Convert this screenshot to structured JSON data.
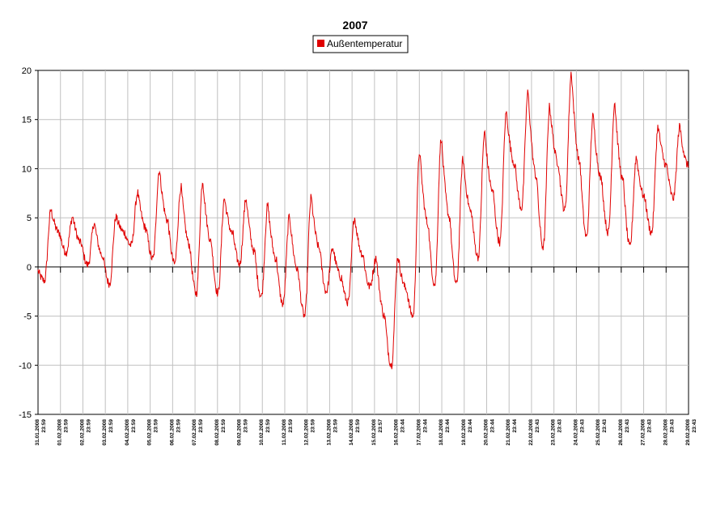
{
  "chart_data": {
    "type": "line",
    "title": "2007",
    "xlabel": "",
    "ylabel": "",
    "ylim": [
      -15,
      20
    ],
    "yticks": [
      -15,
      -10,
      -5,
      0,
      5,
      10,
      15,
      20
    ],
    "grid": true,
    "legend_position": "top-center",
    "x_tick_labels": [
      [
        "31.01.2008",
        "23:59"
      ],
      [
        "01.02.2008",
        "23:59"
      ],
      [
        "02.02.2008",
        "23:59"
      ],
      [
        "03.02.2008",
        "23:59"
      ],
      [
        "04.02.2008",
        "23:59"
      ],
      [
        "05.02.2008",
        "23:59"
      ],
      [
        "06.02.2008",
        "23:59"
      ],
      [
        "07.02.2008",
        "23:59"
      ],
      [
        "08.02.2008",
        "23:59"
      ],
      [
        "09.02.2008",
        "23:59"
      ],
      [
        "10.02.2008",
        "23:59"
      ],
      [
        "11.02.2008",
        "23:59"
      ],
      [
        "12.02.2008",
        "23:59"
      ],
      [
        "13.02.2008",
        "23:59"
      ],
      [
        "14.02.2008",
        "23:59"
      ],
      [
        "15.02.2008",
        "23:57"
      ],
      [
        "16.02.2008",
        "23:44"
      ],
      [
        "17.02.2008",
        "23:44"
      ],
      [
        "18.02.2008",
        "23:44"
      ],
      [
        "19.02.2008",
        "23:44"
      ],
      [
        "20.02.2008",
        "23:44"
      ],
      [
        "21.02.2008",
        "23:44"
      ],
      [
        "22.02.2008",
        "23:43"
      ],
      [
        "23.02.2008",
        "23:43"
      ],
      [
        "24.02.2008",
        "23:43"
      ],
      [
        "25.02.2008",
        "23:43"
      ],
      [
        "26.02.2008",
        "23:43"
      ],
      [
        "27.02.2008",
        "23:43"
      ],
      [
        "28.02.2008",
        "23:43"
      ],
      [
        "29.02.2008",
        "23:43"
      ]
    ],
    "series": [
      {
        "name": "Außentemperatur",
        "color": "#e00000",
        "daily_min": [
          -1.4,
          1.5,
          0.2,
          -1.7,
          2.2,
          0.8,
          0.3,
          -2.7,
          -2.7,
          0.3,
          -3.0,
          -3.8,
          -5.0,
          -2.5,
          -3.6,
          -2.0,
          -10.0,
          -5.0,
          -1.8,
          -1.8,
          1.0,
          2.5,
          6.0,
          2.0,
          5.8,
          3.0,
          3.5,
          2.0,
          3.5,
          7.0
        ],
        "daily_max": [
          5.8,
          5.1,
          4.5,
          5.1,
          7.6,
          9.9,
          8.2,
          8.8,
          7.0,
          7.0,
          6.3,
          5.2,
          7.1,
          2.0,
          5.1,
          1.0,
          1.1,
          11.8,
          13.2,
          11.0,
          13.7,
          15.8,
          17.8,
          16.4,
          19.8,
          15.4,
          16.8,
          11.2,
          14.3,
          14.3
        ]
      }
    ]
  }
}
